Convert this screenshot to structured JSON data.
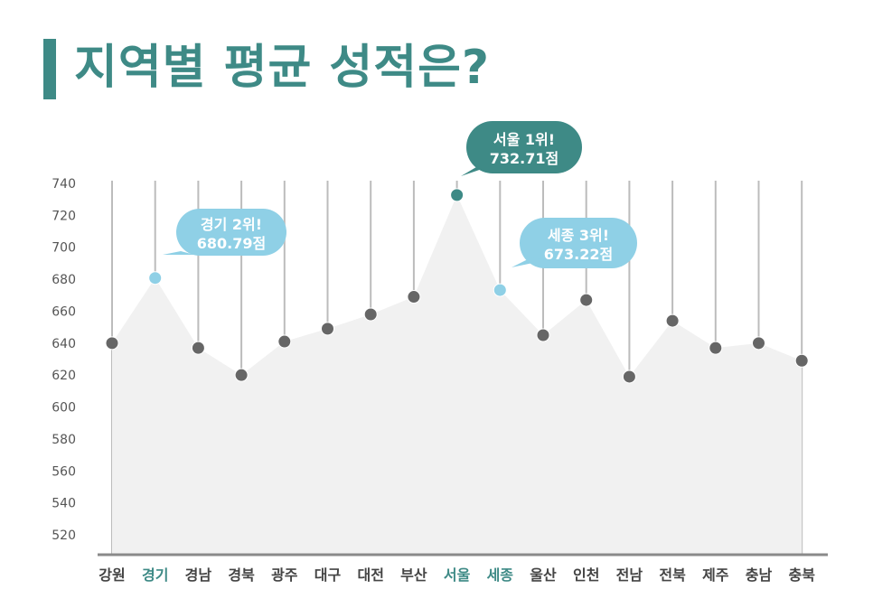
{
  "title": "지역별 평균 성적은?",
  "colors": {
    "accent": "#3e8a86",
    "highlight": "#8fd0e6",
    "point": "#666666",
    "area": "#f1f1f1",
    "gridline": "#bcbcbc",
    "axis": "#8a8a8a"
  },
  "chart_data": {
    "type": "area",
    "categories": [
      "강원",
      "경기",
      "경남",
      "경북",
      "광주",
      "대구",
      "대전",
      "부산",
      "서울",
      "세종",
      "울산",
      "인천",
      "전남",
      "전북",
      "제주",
      "충남",
      "충북"
    ],
    "values": [
      640,
      680.79,
      637,
      620,
      641,
      649,
      658,
      669,
      732.71,
      673.22,
      645,
      667,
      619,
      654,
      637,
      640,
      629
    ],
    "highlighted": [
      "경기",
      "서울",
      "세종"
    ],
    "ylim": [
      510,
      740
    ],
    "yticks": [
      520,
      540,
      560,
      580,
      600,
      620,
      640,
      660,
      680,
      700,
      720,
      740
    ],
    "grid": "vertical",
    "annotations": [
      {
        "category": "경기",
        "line1": "경기 2위!",
        "line2": "680.79점",
        "color": "#8fd0e6"
      },
      {
        "category": "서울",
        "line1": "서울 1위!",
        "line2": "732.71점",
        "color": "#3e8a86"
      },
      {
        "category": "세종",
        "line1": "세종 3위!",
        "line2": "673.22점",
        "color": "#8fd0e6"
      }
    ]
  }
}
